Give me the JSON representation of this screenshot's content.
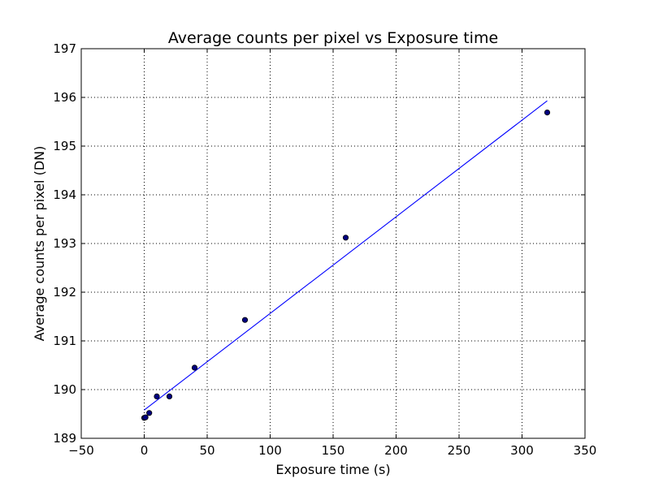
{
  "chart_data": {
    "type": "scatter",
    "title": "Average counts per pixel vs Exposure time",
    "xlabel": "Exposure time (s)",
    "ylabel": "Average counts per pixel (DN)",
    "xlim": [
      -50,
      350
    ],
    "ylim": [
      189,
      197
    ],
    "xticks": [
      -50,
      0,
      50,
      100,
      150,
      200,
      250,
      300,
      350
    ],
    "yticks": [
      189,
      190,
      191,
      192,
      193,
      194,
      195,
      196,
      197
    ],
    "xtick_labels": [
      "−50",
      "0",
      "50",
      "100",
      "150",
      "200",
      "250",
      "300",
      "350"
    ],
    "ytick_labels": [
      "189",
      "190",
      "191",
      "192",
      "193",
      "194",
      "195",
      "196",
      "197"
    ],
    "grid": true,
    "series": [
      {
        "type": "scatter",
        "color": "#000080",
        "x": [
          0,
          1,
          4,
          10,
          20,
          40,
          80,
          160,
          320
        ],
        "y": [
          189.42,
          189.43,
          189.52,
          189.86,
          189.86,
          190.45,
          191.43,
          193.12,
          195.69
        ]
      },
      {
        "type": "line",
        "color": "#0000ff",
        "x": [
          0,
          320
        ],
        "y": [
          189.58,
          195.93
        ]
      }
    ]
  }
}
